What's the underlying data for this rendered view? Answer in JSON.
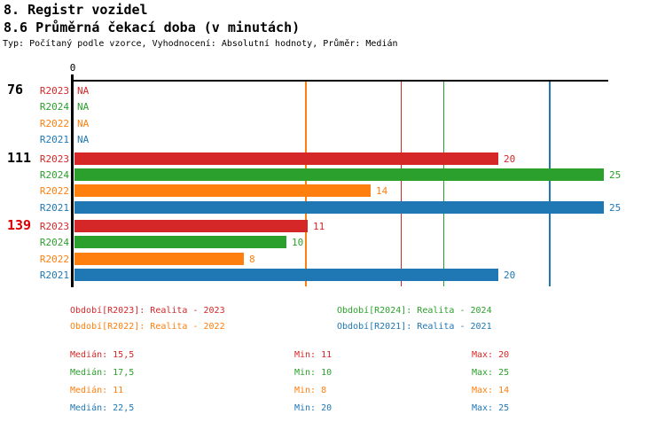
{
  "page": {
    "title_line1": "8. Registr vozidel",
    "title_line2": "8.6 Průměrná čekací doba (v minutách)",
    "subtitle": "Typ: Počítaný podle vzorce, Vyhodnocení: Absolutní hodnoty, Průměr: Medián"
  },
  "colors": {
    "R2023": "#d62728",
    "R2024": "#2ca02c",
    "R2022": "#ff7f0e",
    "R2021": "#1f77b4",
    "axis": "#000000",
    "group_label_default": "#000000",
    "group_label_alert": "#dd0000"
  },
  "chart_data": {
    "type": "bar",
    "orientation": "horizontal",
    "value_axis": {
      "origin_label": "0",
      "min": 0,
      "visible_max": 25.25,
      "gridlines": false
    },
    "series": [
      "R2023",
      "R2024",
      "R2022",
      "R2021"
    ],
    "na_text": "NA",
    "groups": [
      {
        "label": "76",
        "label_alert": false,
        "rows": [
          {
            "series": "R2023",
            "value": null,
            "display": "NA"
          },
          {
            "series": "R2024",
            "value": null,
            "display": "NA"
          },
          {
            "series": "R2022",
            "value": null,
            "display": "NA"
          },
          {
            "series": "R2021",
            "value": null,
            "display": "NA"
          }
        ]
      },
      {
        "label": "111",
        "label_alert": false,
        "rows": [
          {
            "series": "R2023",
            "value": 20,
            "display": "20"
          },
          {
            "series": "R2024",
            "value": 25,
            "display": "25"
          },
          {
            "series": "R2022",
            "value": 14,
            "display": "14"
          },
          {
            "series": "R2021",
            "value": 25,
            "display": "25"
          }
        ]
      },
      {
        "label": "139",
        "label_alert": true,
        "rows": [
          {
            "series": "R2023",
            "value": 11,
            "display": "11"
          },
          {
            "series": "R2024",
            "value": 10,
            "display": "10"
          },
          {
            "series": "R2022",
            "value": 8,
            "display": "8"
          },
          {
            "series": "R2021",
            "value": 20,
            "display": "20"
          }
        ]
      }
    ],
    "median_lines": [
      {
        "series": "R2022",
        "value": 11
      },
      {
        "series": "R2023",
        "value": 15.5
      },
      {
        "series": "R2024",
        "value": 17.5
      },
      {
        "series": "R2021",
        "value": 22.5
      }
    ]
  },
  "legend": {
    "items": [
      {
        "series": "R2023",
        "label": "Období[R2023]: Realita - 2023"
      },
      {
        "series": "R2024",
        "label": "Období[R2024]: Realita - 2024"
      },
      {
        "series": "R2022",
        "label": "Období[R2022]: Realita - 2022"
      },
      {
        "series": "R2021",
        "label": "Období[R2021]: Realita - 2021"
      }
    ]
  },
  "stats": {
    "rows": [
      {
        "series": "R2023",
        "median": "Medián: 15,5",
        "min": "Min: 11",
        "max": "Max: 20"
      },
      {
        "series": "R2024",
        "median": "Medián: 17,5",
        "min": "Min: 10",
        "max": "Max: 25"
      },
      {
        "series": "R2022",
        "median": "Medián: 11",
        "min": "Min: 8",
        "max": "Max: 14"
      },
      {
        "series": "R2021",
        "median": "Medián: 22,5",
        "min": "Min: 20",
        "max": "Max: 25"
      }
    ]
  }
}
